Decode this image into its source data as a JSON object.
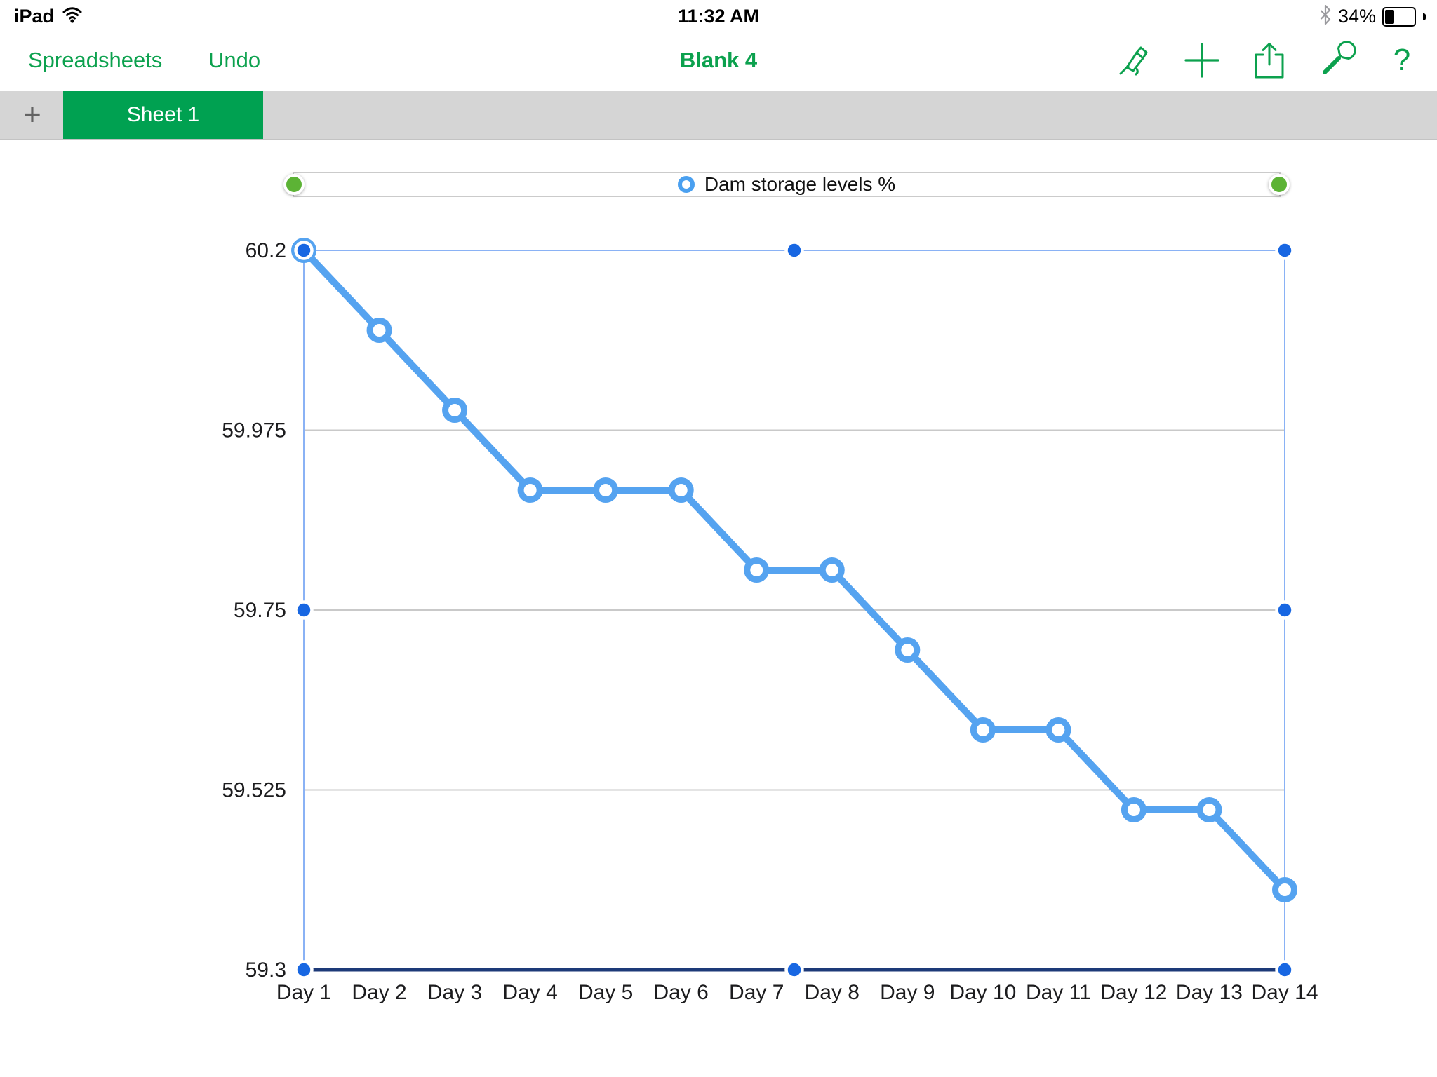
{
  "status_bar": {
    "device": "iPad",
    "time": "11:32 AM",
    "battery_percent": "34%"
  },
  "toolbar": {
    "spreadsheets_label": "Spreadsheets",
    "undo_label": "Undo",
    "title": "Blank 4",
    "icons": [
      "format-brush-icon",
      "insert-plus-icon",
      "share-icon",
      "tools-wrench-icon",
      "help-icon"
    ],
    "help_glyph": "?"
  },
  "tab_bar": {
    "add_label": "+",
    "tabs": [
      {
        "label": "Sheet 1",
        "active": true
      }
    ]
  },
  "chart_data": {
    "type": "line",
    "legend_label": "Dam storage levels %",
    "selected": true,
    "categories": [
      "Day 1",
      "Day 2",
      "Day 3",
      "Day 4",
      "Day 5",
      "Day 6",
      "Day 7",
      "Day 8",
      "Day 9",
      "Day 10",
      "Day 11",
      "Day 12",
      "Day 13",
      "Day 14"
    ],
    "series": [
      {
        "name": "Dam storage levels %",
        "values": [
          60.2,
          60.1,
          60.0,
          59.9,
          59.9,
          59.9,
          59.8,
          59.8,
          59.7,
          59.6,
          59.6,
          59.5,
          59.5,
          59.4
        ]
      }
    ],
    "ylim": [
      59.3,
      60.2
    ],
    "ytick_labels": [
      "60.2",
      "59.975",
      "59.75",
      "59.525",
      "59.3"
    ],
    "ytick_values": [
      60.2,
      59.975,
      59.75,
      59.525,
      59.3
    ],
    "gridline_values": [
      59.975,
      59.75,
      59.525
    ],
    "grid": true,
    "legend_position": "top",
    "colors": {
      "line": "#55a3f0",
      "marker_fill": "#ffffff",
      "axis_line": "#1d3a78",
      "gridline": "#c9c9c9",
      "selection_border": "#8ab2f5",
      "selection_handle": "#1867e2",
      "legend_handle": "#5cb335",
      "label_text": "#1c1c1e"
    }
  },
  "app_colors": {
    "accent_green": "#0ca14e",
    "tab_green": "#00a151",
    "tabbar_gray": "#d5d5d5"
  }
}
